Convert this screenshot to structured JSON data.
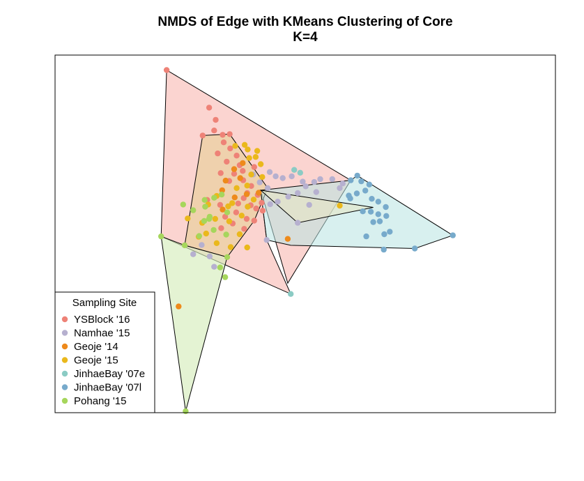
{
  "chart_data": {
    "type": "scatter",
    "title": "NMDS of Edge with KMeans Clustering of Core",
    "subtitle": "K=4",
    "xlabel": "",
    "ylabel": "",
    "xlim": [
      0,
      100
    ],
    "ylim": [
      0,
      100
    ],
    "axes_shown": false,
    "grid": false,
    "legend": {
      "title": "Sampling Site",
      "placement": "bottom-left",
      "entries": [
        "YSBlock '16",
        "Namhae '15",
        "Geoje '14",
        "Geoje '15",
        "JinhaeBay '07e",
        "JinhaeBay '07l",
        "Pohang '15"
      ]
    },
    "colors": {
      "YSBlock '16": "#ee8277",
      "Namhae '15": "#b6b0cf",
      "Geoje '14": "#ee8a1b",
      "Geoje '15": "#eab81c",
      "JinhaeBay '07e": "#8bcbc4",
      "JinhaeBay '07l": "#77aacb",
      "Pohang '15": "#a6d65c"
    },
    "hulls": [
      {
        "fill": "#f8b1aa",
        "opacity": 0.55,
        "points": [
          [
            22.3,
            95.8
          ],
          [
            59.1,
            65.0
          ],
          [
            46.5,
            36.2
          ],
          [
            41.1,
            62.2
          ],
          [
            42.3,
            48.3
          ],
          [
            47.1,
            33.2
          ],
          [
            21.2,
            49.3
          ]
        ]
      },
      {
        "fill": "#e8cf9a",
        "opacity": 0.65,
        "points": [
          [
            29.5,
            77.5
          ],
          [
            34.9,
            77.9
          ],
          [
            42.5,
            62.8
          ],
          [
            39.8,
            53.7
          ],
          [
            34.4,
            43.5
          ],
          [
            25.9,
            46.8
          ]
        ]
      },
      {
        "fill": "#d6edbb",
        "opacity": 0.65,
        "points": [
          [
            21.2,
            49.3
          ],
          [
            25.9,
            46.8
          ],
          [
            34.4,
            43.5
          ],
          [
            26.1,
            0.4
          ]
        ]
      },
      {
        "fill": "#b8e4e1",
        "opacity": 0.55,
        "points": [
          [
            41.1,
            62.2
          ],
          [
            59.1,
            65.0
          ],
          [
            60.4,
            66.3
          ],
          [
            79.5,
            49.6
          ],
          [
            71.9,
            45.9
          ],
          [
            47.1,
            46.8
          ],
          [
            42.3,
            48.3
          ]
        ]
      },
      {
        "fill": "#e6e6c4",
        "opacity": 0.6,
        "points": [
          [
            41.1,
            62.2
          ],
          [
            63.6,
            57.4
          ],
          [
            48.5,
            53.1
          ]
        ]
      }
    ],
    "series": [
      {
        "name": "YSBlock '16",
        "points": [
          [
            22.3,
            95.8
          ],
          [
            30.8,
            85.3
          ],
          [
            32.1,
            81.9
          ],
          [
            31.8,
            78.9
          ],
          [
            33.5,
            77.7
          ],
          [
            29.5,
            77.5
          ],
          [
            34.9,
            77.9
          ],
          [
            33.7,
            75.6
          ],
          [
            35.0,
            73.9
          ],
          [
            32.5,
            72.5
          ],
          [
            36.3,
            71.9
          ],
          [
            34.3,
            70.2
          ],
          [
            36.9,
            69.2
          ],
          [
            39.8,
            68.7
          ],
          [
            37.5,
            67.6
          ],
          [
            33.1,
            67.0
          ],
          [
            35.8,
            66.8
          ],
          [
            37.6,
            65.0
          ],
          [
            39.2,
            63.4
          ],
          [
            38.4,
            61.4
          ],
          [
            40.5,
            60.9
          ],
          [
            37.7,
            60.0
          ],
          [
            39.1,
            58.0
          ],
          [
            36.6,
            58.5
          ],
          [
            40.2,
            57.1
          ],
          [
            41.5,
            56.5
          ],
          [
            36.2,
            56.0
          ],
          [
            34.0,
            54.8
          ],
          [
            38.3,
            54.2
          ],
          [
            35.5,
            52.9
          ],
          [
            33.2,
            51.6
          ],
          [
            37.8,
            51.4
          ],
          [
            39.8,
            53.7
          ],
          [
            41.3,
            58.7
          ],
          [
            33.0,
            58.1
          ],
          [
            30.4,
            59.5
          ],
          [
            34.8,
            64.8
          ]
        ]
      },
      {
        "name": "Namhae '15",
        "points": [
          [
            42.9,
            67.3
          ],
          [
            44.1,
            66.1
          ],
          [
            45.5,
            65.6
          ],
          [
            47.3,
            66.1
          ],
          [
            49.5,
            64.6
          ],
          [
            50.1,
            63.3
          ],
          [
            51.8,
            64.5
          ],
          [
            53.0,
            65.3
          ],
          [
            55.4,
            65.3
          ],
          [
            57.5,
            64.1
          ],
          [
            56.9,
            62.8
          ],
          [
            52.2,
            61.7
          ],
          [
            48.5,
            61.4
          ],
          [
            46.6,
            60.4
          ],
          [
            44.5,
            59.0
          ],
          [
            43.0,
            58.3
          ],
          [
            42.5,
            62.8
          ],
          [
            50.8,
            58.1
          ],
          [
            48.5,
            53.1
          ],
          [
            42.3,
            48.3
          ],
          [
            40.9,
            64.4
          ],
          [
            39.6,
            66.6
          ],
          [
            30.9,
            43.7
          ],
          [
            31.8,
            40.8
          ],
          [
            29.3,
            46.9
          ],
          [
            27.6,
            44.3
          ]
        ]
      },
      {
        "name": "Geoje '14",
        "points": [
          [
            35.8,
            68.1
          ],
          [
            37.0,
            65.6
          ],
          [
            34.1,
            64.9
          ],
          [
            38.3,
            61.1
          ],
          [
            35.9,
            60.2
          ],
          [
            33.4,
            62.2
          ],
          [
            40.7,
            61.5
          ],
          [
            33.5,
            56.8
          ],
          [
            46.5,
            48.6
          ],
          [
            24.7,
            29.7
          ],
          [
            37.5,
            69.8
          ]
        ]
      },
      {
        "name": "Geoje '15",
        "points": [
          [
            36.0,
            74.6
          ],
          [
            37.9,
            74.9
          ],
          [
            40.4,
            73.2
          ],
          [
            38.8,
            71.2
          ],
          [
            41.1,
            69.5
          ],
          [
            39.2,
            66.6
          ],
          [
            41.4,
            65.9
          ],
          [
            38.4,
            63.5
          ],
          [
            36.3,
            62.8
          ],
          [
            39.7,
            59.6
          ],
          [
            35.4,
            58.6
          ],
          [
            32.3,
            60.6
          ],
          [
            30.6,
            58.2
          ],
          [
            34.6,
            57.7
          ],
          [
            38.5,
            57.6
          ],
          [
            37.3,
            55.1
          ],
          [
            34.8,
            53.5
          ],
          [
            32.0,
            54.2
          ],
          [
            29.4,
            53.1
          ],
          [
            30.2,
            50.1
          ],
          [
            28.7,
            49.2
          ],
          [
            32.3,
            47.4
          ],
          [
            35.1,
            46.3
          ],
          [
            36.9,
            49.9
          ],
          [
            38.4,
            46.2
          ],
          [
            56.9,
            57.9
          ],
          [
            26.5,
            54.3
          ],
          [
            40.1,
            71.5
          ],
          [
            38.5,
            73.6
          ]
        ]
      },
      {
        "name": "JinhaeBay '07e",
        "points": [
          [
            47.1,
            33.2
          ],
          [
            47.8,
            67.9
          ],
          [
            49.0,
            67.1
          ]
        ]
      },
      {
        "name": "JinhaeBay '07l",
        "points": [
          [
            60.4,
            66.3
          ],
          [
            59.1,
            65.0
          ],
          [
            61.2,
            64.7
          ],
          [
            62.8,
            63.8
          ],
          [
            62.0,
            62.1
          ],
          [
            60.3,
            61.3
          ],
          [
            59.0,
            59.9
          ],
          [
            63.3,
            59.8
          ],
          [
            64.6,
            59.0
          ],
          [
            61.5,
            56.3
          ],
          [
            63.1,
            56.2
          ],
          [
            64.6,
            55.5
          ],
          [
            66.2,
            55.0
          ],
          [
            64.9,
            53.5
          ],
          [
            63.6,
            53.3
          ],
          [
            66.9,
            50.6
          ],
          [
            65.8,
            49.9
          ],
          [
            62.2,
            49.3
          ],
          [
            65.7,
            45.6
          ],
          [
            71.9,
            45.9
          ],
          [
            79.5,
            49.6
          ],
          [
            66.1,
            57.5
          ],
          [
            58.7,
            60.7
          ]
        ]
      },
      {
        "name": "Pohang '15",
        "points": [
          [
            21.2,
            49.3
          ],
          [
            29.9,
            59.5
          ],
          [
            31.8,
            60.1
          ],
          [
            33.3,
            61.0
          ],
          [
            30.0,
            57.6
          ],
          [
            29.8,
            53.6
          ],
          [
            31.7,
            51.1
          ],
          [
            30.9,
            54.8
          ],
          [
            27.6,
            56.6
          ],
          [
            28.8,
            49.4
          ],
          [
            25.9,
            46.8
          ],
          [
            34.4,
            43.5
          ],
          [
            33.0,
            40.6
          ],
          [
            34.2,
            49.8
          ],
          [
            25.6,
            58.2
          ],
          [
            34.4,
            56.0
          ],
          [
            26.1,
            0.4
          ],
          [
            34.0,
            37.9
          ],
          [
            30.8,
            54.2
          ]
        ]
      }
    ]
  }
}
